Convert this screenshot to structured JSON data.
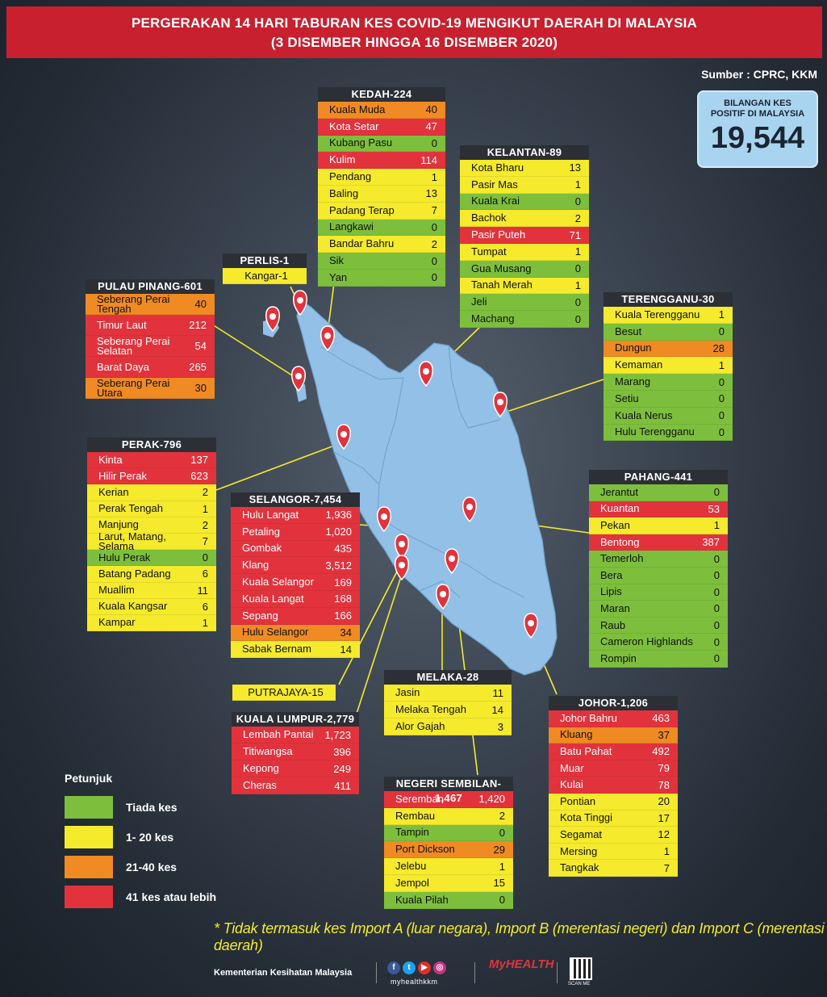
{
  "title_line1": "PERGERAKAN 14 HARI TABURAN KES COVID-19 MENGIKUT DAERAH DI MALAYSIA",
  "title_line2": "(3 DISEMBER HINGGA 16 DISEMBER 2020)",
  "source": "Sumber : CPRC, KKM",
  "total": {
    "label1": "BILANGAN KES",
    "label2": "POSITIF DI MALAYSIA",
    "value": "19,544"
  },
  "colors": {
    "tiada": "#7dbf3c",
    "low": "#f5ea2c",
    "mid": "#f08a22",
    "high": "#e2333d"
  },
  "states": [
    {
      "id": "kedah",
      "title": "KEDAH-224",
      "rows": [
        [
          "Kuala Muda",
          "40",
          "o"
        ],
        [
          "Kota Setar",
          "47",
          "r"
        ],
        [
          "Kubang Pasu",
          "0",
          "g"
        ],
        [
          "Kulim",
          "114",
          "r"
        ],
        [
          "Pendang",
          "1",
          "y"
        ],
        [
          "Baling",
          "13",
          "y"
        ],
        [
          "Padang Terap",
          "7",
          "y"
        ],
        [
          "Langkawi",
          "0",
          "g"
        ],
        [
          "Bandar Bahru",
          "2",
          "y"
        ],
        [
          "Sik",
          "0",
          "g"
        ],
        [
          "Yan",
          "0",
          "g"
        ]
      ]
    },
    {
      "id": "kelantan",
      "title": "KELANTAN-89",
      "rows": [
        [
          "Kota Bharu",
          "13",
          "y"
        ],
        [
          "Pasir Mas",
          "1",
          "y"
        ],
        [
          "Kuala Krai",
          "0",
          "g"
        ],
        [
          "Bachok",
          "2",
          "y"
        ],
        [
          "Pasir Puteh",
          "71",
          "r"
        ],
        [
          "Tumpat",
          "1",
          "y"
        ],
        [
          "Gua Musang",
          "0",
          "g"
        ],
        [
          "Tanah Merah",
          "1",
          "y"
        ],
        [
          "Jeli",
          "0",
          "g"
        ],
        [
          "Machang",
          "0",
          "g"
        ]
      ]
    },
    {
      "id": "perlis",
      "title": "PERLIS-1",
      "rows": [
        [
          "Kangar-1",
          "",
          "y"
        ]
      ]
    },
    {
      "id": "pinang",
      "title": "PULAU PINANG-601",
      "rows": [
        [
          "Seberang Perai Tengah",
          "40",
          "o"
        ],
        [
          "Timur Laut",
          "212",
          "r"
        ],
        [
          "Seberang Perai Selatan",
          "54",
          "r"
        ],
        [
          "Barat Daya",
          "265",
          "r"
        ],
        [
          "Seberang Perai Utara",
          "30",
          "o"
        ]
      ]
    },
    {
      "id": "terengganu",
      "title": "TERENGGANU-30",
      "rows": [
        [
          "Kuala Terengganu",
          "1",
          "y"
        ],
        [
          "Besut",
          "0",
          "g"
        ],
        [
          "Dungun",
          "28",
          "o"
        ],
        [
          "Kemaman",
          "1",
          "y"
        ],
        [
          "Marang",
          "0",
          "g"
        ],
        [
          "Setiu",
          "0",
          "g"
        ],
        [
          "Kuala Nerus",
          "0",
          "g"
        ],
        [
          "Hulu Terengganu",
          "0",
          "g"
        ]
      ]
    },
    {
      "id": "perak",
      "title": "PERAK-796",
      "rows": [
        [
          "Kinta",
          "137",
          "r"
        ],
        [
          "Hilir Perak",
          "623",
          "r"
        ],
        [
          "Kerian",
          "2",
          "y"
        ],
        [
          "Perak Tengah",
          "1",
          "y"
        ],
        [
          "Manjung",
          "2",
          "y"
        ],
        [
          "Larut, Matang, Selama",
          "7",
          "y"
        ],
        [
          "Hulu Perak",
          "0",
          "g"
        ],
        [
          "Batang Padang",
          "6",
          "y"
        ],
        [
          "Muallim",
          "11",
          "y"
        ],
        [
          "Kuala Kangsar",
          "6",
          "y"
        ],
        [
          "Kampar",
          "1",
          "y"
        ]
      ]
    },
    {
      "id": "selangor",
      "title": "SELANGOR-7,454",
      "rows": [
        [
          "Hulu Langat",
          "1,936",
          "r"
        ],
        [
          "Petaling",
          "1,020",
          "r"
        ],
        [
          "Gombak",
          "435",
          "r"
        ],
        [
          "Klang",
          "3,512",
          "r"
        ],
        [
          "Kuala Selangor",
          "169",
          "r"
        ],
        [
          "Kuala Langat",
          "168",
          "r"
        ],
        [
          "Sepang",
          "166",
          "r"
        ],
        [
          "Hulu Selangor",
          "34",
          "o"
        ],
        [
          "Sabak Bernam",
          "14",
          "y"
        ]
      ]
    },
    {
      "id": "pahang",
      "title": "PAHANG-441",
      "rows": [
        [
          "Jerantut",
          "0",
          "g"
        ],
        [
          "Kuantan",
          "53",
          "r"
        ],
        [
          "Pekan",
          "1",
          "y"
        ],
        [
          "Bentong",
          "387",
          "r"
        ],
        [
          "Temerloh",
          "0",
          "g"
        ],
        [
          "Bera",
          "0",
          "g"
        ],
        [
          "Lipis",
          "0",
          "g"
        ],
        [
          "Maran",
          "0",
          "g"
        ],
        [
          "Raub",
          "0",
          "g"
        ],
        [
          "Cameron Highlands",
          "0",
          "g"
        ],
        [
          "Rompin",
          "0",
          "g"
        ]
      ]
    },
    {
      "id": "putrajaya",
      "title": "",
      "rows": [
        [
          "PUTRAJAYA-15",
          "",
          "y"
        ]
      ]
    },
    {
      "id": "melaka",
      "title": "MELAKA-28",
      "rows": [
        [
          "Jasin",
          "11",
          "y"
        ],
        [
          "Melaka Tengah",
          "14",
          "y"
        ],
        [
          "Alor Gajah",
          "3",
          "y"
        ]
      ]
    },
    {
      "id": "kl",
      "title": "KUALA LUMPUR-2,779",
      "rows": [
        [
          "Lembah Pantai",
          "1,723",
          "r"
        ],
        [
          "Titiwangsa",
          "396",
          "r"
        ],
        [
          "Kepong",
          "249",
          "r"
        ],
        [
          "Cheras",
          "411",
          "r"
        ]
      ]
    },
    {
      "id": "johor",
      "title": "JOHOR-1,206",
      "rows": [
        [
          "Johor Bahru",
          "463",
          "r"
        ],
        [
          "Kluang",
          "37",
          "o"
        ],
        [
          "Batu Pahat",
          "492",
          "r"
        ],
        [
          "Muar",
          "79",
          "r"
        ],
        [
          "Kulai",
          "78",
          "r"
        ],
        [
          "Pontian",
          "20",
          "y"
        ],
        [
          "Kota Tinggi",
          "17",
          "y"
        ],
        [
          "Segamat",
          "12",
          "y"
        ],
        [
          "Mersing",
          "1",
          "y"
        ],
        [
          "Tangkak",
          "7",
          "y"
        ]
      ]
    },
    {
      "id": "ns",
      "title": "NEGERI SEMBILAN-1,467",
      "rows": [
        [
          "Seremban",
          "1,420",
          "r"
        ],
        [
          "Rembau",
          "2",
          "y"
        ],
        [
          "Tampin",
          "0",
          "g"
        ],
        [
          "Port Dickson",
          "29",
          "o"
        ],
        [
          "Jelebu",
          "1",
          "y"
        ],
        [
          "Jempol",
          "15",
          "y"
        ],
        [
          "Kuala Pilah",
          "0",
          "g"
        ]
      ]
    }
  ],
  "legend": {
    "title": "Petunjuk",
    "items": [
      [
        "Tiada kes",
        "g"
      ],
      [
        "1- 20 kes",
        "y"
      ],
      [
        "21-40 kes",
        "o"
      ],
      [
        "41 kes atau lebih",
        "r"
      ]
    ]
  },
  "footnote": "* Tidak termasuk kes Import A (luar negara),  Import B (merentasi negeri) dan Import C (merentasi daerah)",
  "ministry": "Kementerian Kesihatan Malaysia",
  "social_handle": "myhealthkkm",
  "logo_text": "MyHEALTH",
  "qr_label": "SCAN ME"
}
